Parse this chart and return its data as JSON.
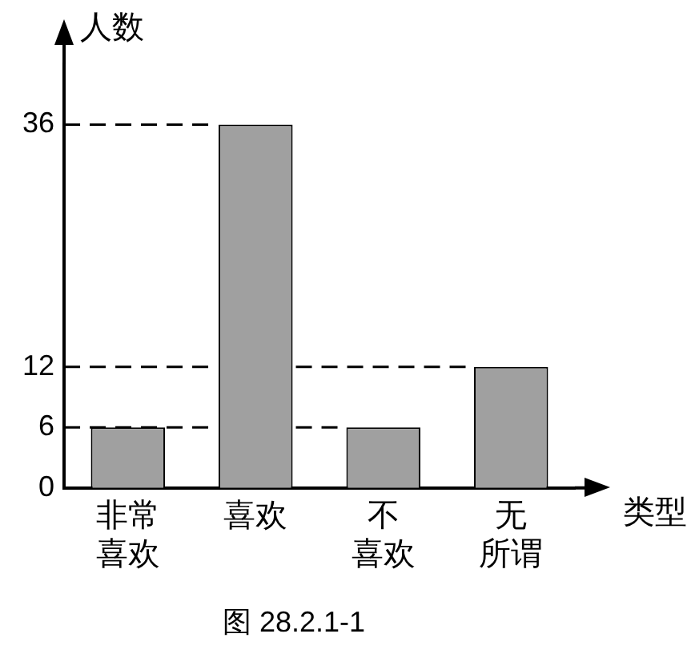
{
  "chart_data": {
    "type": "bar",
    "title": "图 28.2.1-1",
    "xlabel": "类型",
    "ylabel": "人数",
    "categories": [
      "非常喜欢",
      "喜欢",
      "不喜欢",
      "无所谓"
    ],
    "values": [
      6,
      36,
      6,
      12
    ],
    "color": "#a0a0a0",
    "ylim": [
      0,
      42
    ],
    "yticks": [
      0,
      6,
      12,
      36
    ],
    "ref_lines": [
      {
        "axis": "y",
        "value": 6,
        "line_style": "dashed"
      },
      {
        "axis": "y",
        "value": 12,
        "line_style": "dashed"
      },
      {
        "axis": "y",
        "value": 36,
        "line_style": "dashed"
      }
    ],
    "legend": false,
    "grid": false
  }
}
